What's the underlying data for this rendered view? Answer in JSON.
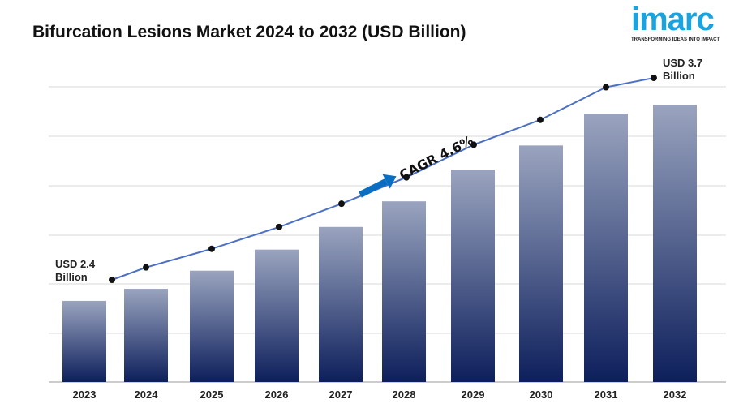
{
  "title": "Bifurcation Lesions Market 2024 to 2032 (USD Billion)",
  "logo": {
    "word": "imarc",
    "tagline": "TRANSFORMING IDEAS INTO IMPACT",
    "color": "#1aa3df"
  },
  "chart_data": {
    "type": "bar",
    "title": "Bifurcation Lesions Market 2024 to 2032 (USD Billion)",
    "categories": [
      "2023",
      "2024",
      "2025",
      "2026",
      "2027",
      "2028",
      "2029",
      "2030",
      "2031",
      "2032"
    ],
    "values": [
      2.4,
      2.48,
      2.6,
      2.74,
      2.89,
      3.06,
      3.27,
      3.43,
      3.64,
      3.7
    ],
    "trend_line": true,
    "grid": true,
    "annotations": {
      "start_line1": "USD 2.4",
      "start_line2": "Billion",
      "end_line1": "USD 3.7",
      "end_line2": "Billion",
      "cagr": "CAGR 4.6%"
    },
    "colors": {
      "bar_top": "#9aa4bf",
      "bar_bottom": "#0d1f5c",
      "line": "#4a6fc4",
      "arrow": "#0a6fc2"
    }
  }
}
